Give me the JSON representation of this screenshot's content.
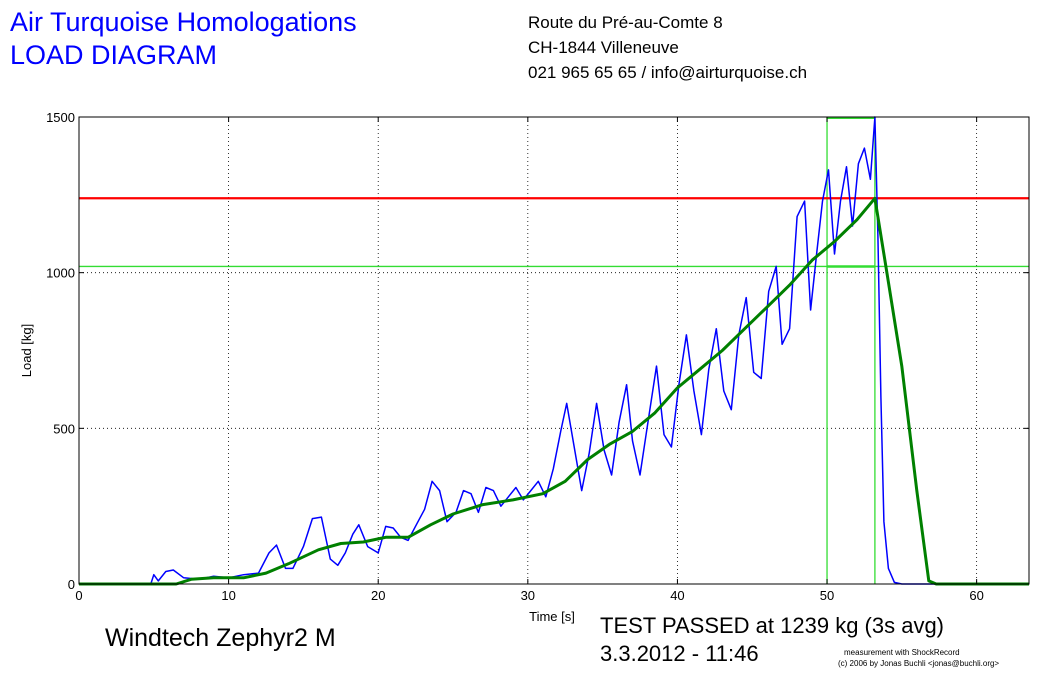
{
  "header": {
    "title_line1": "Air Turquoise Homologations",
    "title_line2": "LOAD DIAGRAM",
    "address_line1": "Route du Pré-au-Comte 8",
    "address_line2": "CH-1844 Villeneuve",
    "address_line3": "021 965 65 65 / info@airturquoise.ch"
  },
  "footer": {
    "glider": "Windtech Zephyr2 M",
    "result_line1": "TEST PASSED at 1239 kg (3s avg)",
    "result_line2": "3.3.2012 - 11:46",
    "credit_line1": "measurement with ShockRecord",
    "credit_line2": "(c) 2006 by Jonas Buchli <jonas@buchli.org>"
  },
  "colors": {
    "raw": "#0000ff",
    "avg": "#008000",
    "limit": "#ff0000",
    "window": "#33dd33",
    "title": "#0000ff"
  },
  "chart_data": {
    "type": "line",
    "xlabel": "Time [s]",
    "ylabel": "Load [kg]",
    "xlim": [
      0,
      63.5
    ],
    "ylim": [
      0,
      1500
    ],
    "x_ticks": [
      0,
      10,
      20,
      30,
      40,
      50,
      60
    ],
    "y_ticks": [
      0,
      500,
      1000,
      1500
    ],
    "grid": true,
    "reference_lines": {
      "required_load_kg": 1239,
      "lower_window_kg": 1020,
      "window_start_s": 50,
      "window_end_s": 53.2
    },
    "series": [
      {
        "role": "raw",
        "points": [
          [
            0,
            0
          ],
          [
            4.8,
            0
          ],
          [
            5.0,
            30
          ],
          [
            5.3,
            10
          ],
          [
            5.8,
            40
          ],
          [
            6.3,
            45
          ],
          [
            7.0,
            20
          ],
          [
            8.0,
            15
          ],
          [
            9.0,
            25
          ],
          [
            10.0,
            20
          ],
          [
            11.0,
            30
          ],
          [
            12.0,
            35
          ],
          [
            12.7,
            100
          ],
          [
            13.2,
            125
          ],
          [
            13.8,
            50
          ],
          [
            14.3,
            50
          ],
          [
            15.0,
            120
          ],
          [
            15.6,
            210
          ],
          [
            16.2,
            215
          ],
          [
            16.8,
            80
          ],
          [
            17.3,
            60
          ],
          [
            17.8,
            100
          ],
          [
            18.3,
            160
          ],
          [
            18.7,
            190
          ],
          [
            19.3,
            120
          ],
          [
            20.0,
            100
          ],
          [
            20.5,
            185
          ],
          [
            21.0,
            180
          ],
          [
            21.5,
            150
          ],
          [
            22.0,
            140
          ],
          [
            22.6,
            195
          ],
          [
            23.1,
            240
          ],
          [
            23.6,
            330
          ],
          [
            24.1,
            300
          ],
          [
            24.6,
            200
          ],
          [
            25.2,
            230
          ],
          [
            25.7,
            300
          ],
          [
            26.2,
            290
          ],
          [
            26.7,
            230
          ],
          [
            27.2,
            310
          ],
          [
            27.7,
            300
          ],
          [
            28.2,
            250
          ],
          [
            28.7,
            280
          ],
          [
            29.2,
            310
          ],
          [
            29.7,
            270
          ],
          [
            30.2,
            300
          ],
          [
            30.7,
            330
          ],
          [
            31.2,
            280
          ],
          [
            31.7,
            370
          ],
          [
            32.2,
            490
          ],
          [
            32.6,
            580
          ],
          [
            33.1,
            440
          ],
          [
            33.6,
            300
          ],
          [
            34.1,
            420
          ],
          [
            34.6,
            580
          ],
          [
            35.1,
            430
          ],
          [
            35.6,
            350
          ],
          [
            36.1,
            520
          ],
          [
            36.6,
            640
          ],
          [
            37.0,
            460
          ],
          [
            37.5,
            350
          ],
          [
            38.0,
            510
          ],
          [
            38.6,
            700
          ],
          [
            39.1,
            480
          ],
          [
            39.6,
            440
          ],
          [
            40.1,
            640
          ],
          [
            40.6,
            800
          ],
          [
            41.1,
            620
          ],
          [
            41.6,
            480
          ],
          [
            42.1,
            690
          ],
          [
            42.6,
            820
          ],
          [
            43.1,
            620
          ],
          [
            43.6,
            560
          ],
          [
            44.1,
            800
          ],
          [
            44.6,
            920
          ],
          [
            45.1,
            680
          ],
          [
            45.6,
            660
          ],
          [
            46.1,
            940
          ],
          [
            46.6,
            1020
          ],
          [
            47.0,
            770
          ],
          [
            47.5,
            820
          ],
          [
            48.0,
            1180
          ],
          [
            48.5,
            1230
          ],
          [
            48.9,
            880
          ],
          [
            49.3,
            1060
          ],
          [
            49.7,
            1230
          ],
          [
            50.1,
            1330
          ],
          [
            50.5,
            1060
          ],
          [
            50.9,
            1230
          ],
          [
            51.3,
            1340
          ],
          [
            51.7,
            1150
          ],
          [
            52.1,
            1350
          ],
          [
            52.5,
            1400
          ],
          [
            52.9,
            1300
          ],
          [
            53.2,
            1500
          ],
          [
            53.4,
            1120
          ],
          [
            53.6,
            600
          ],
          [
            53.8,
            200
          ],
          [
            54.1,
            50
          ],
          [
            54.5,
            5
          ],
          [
            55.0,
            0
          ],
          [
            63.5,
            0
          ]
        ]
      },
      {
        "role": "avg",
        "points": [
          [
            0,
            0
          ],
          [
            6.5,
            0
          ],
          [
            7.5,
            15
          ],
          [
            9.0,
            20
          ],
          [
            11.0,
            20
          ],
          [
            12.5,
            35
          ],
          [
            14.0,
            65
          ],
          [
            16.0,
            110
          ],
          [
            17.5,
            130
          ],
          [
            19.0,
            135
          ],
          [
            20.5,
            150
          ],
          [
            22.0,
            150
          ],
          [
            23.5,
            190
          ],
          [
            25.0,
            225
          ],
          [
            27.0,
            255
          ],
          [
            29.0,
            270
          ],
          [
            31.0,
            290
          ],
          [
            32.5,
            330
          ],
          [
            34.0,
            400
          ],
          [
            35.5,
            450
          ],
          [
            37.0,
            490
          ],
          [
            38.5,
            550
          ],
          [
            40.0,
            630
          ],
          [
            41.5,
            690
          ],
          [
            43.0,
            750
          ],
          [
            44.5,
            820
          ],
          [
            46.0,
            890
          ],
          [
            47.5,
            960
          ],
          [
            49.0,
            1040
          ],
          [
            50.5,
            1100
          ],
          [
            52.0,
            1170
          ],
          [
            53.2,
            1239
          ],
          [
            54.0,
            1000
          ],
          [
            55.0,
            700
          ],
          [
            56.0,
            300
          ],
          [
            56.8,
            10
          ],
          [
            57.3,
            0
          ],
          [
            63.5,
            0
          ]
        ]
      }
    ]
  }
}
